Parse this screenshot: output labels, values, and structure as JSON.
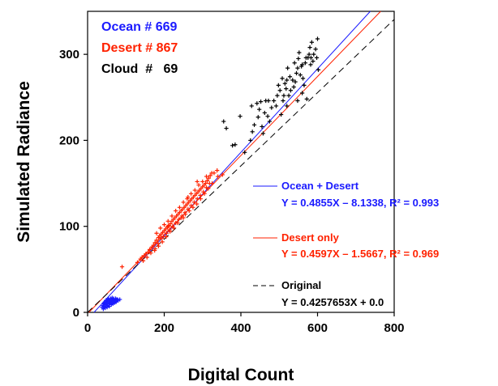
{
  "chart_data": {
    "type": "scatter",
    "title": "",
    "xlabel": "Digital Count",
    "ylabel": "Simulated Radiance",
    "xlim": [
      0,
      800
    ],
    "ylim": [
      0,
      350
    ],
    "x_ticks": [
      "0",
      "200",
      "400",
      "600",
      "800"
    ],
    "y_ticks": [
      "0",
      "100",
      "200",
      "300"
    ],
    "grid": false,
    "colors": {
      "ocean": "#1a1aff",
      "desert": "#ff2200",
      "cloud": "#000000",
      "original": "#000000"
    },
    "counts": [
      {
        "label": "Ocean # 669",
        "color": "#1a1aff"
      },
      {
        "label": "Desert # 867",
        "color": "#ff2200"
      },
      {
        "label": "Cloud  #   69",
        "color": "#000000"
      }
    ],
    "series": [
      {
        "name": "Ocean",
        "marker": "+",
        "color": "#1a1aff",
        "points": [
          [
            38,
            6
          ],
          [
            40,
            8
          ],
          [
            42,
            10
          ],
          [
            44,
            7
          ],
          [
            45,
            12
          ],
          [
            47,
            9
          ],
          [
            48,
            14
          ],
          [
            50,
            11
          ],
          [
            52,
            13
          ],
          [
            53,
            8
          ],
          [
            55,
            15
          ],
          [
            56,
            10
          ],
          [
            58,
            12
          ],
          [
            60,
            16
          ],
          [
            61,
            11
          ],
          [
            63,
            14
          ],
          [
            65,
            13
          ],
          [
            67,
            15
          ],
          [
            69,
            12
          ],
          [
            71,
            14
          ],
          [
            73,
            16
          ],
          [
            75,
            13
          ],
          [
            78,
            15
          ],
          [
            46,
            5
          ],
          [
            51,
            6
          ],
          [
            57,
            7
          ],
          [
            62,
            9
          ],
          [
            66,
            10
          ],
          [
            70,
            11
          ],
          [
            74,
            12
          ],
          [
            80,
            14
          ],
          [
            43,
            11
          ],
          [
            49,
            12
          ],
          [
            54,
            16
          ],
          [
            59,
            14
          ],
          [
            64,
            17
          ],
          [
            68,
            16
          ],
          [
            72,
            13
          ],
          [
            76,
            15
          ],
          [
            41,
            4
          ],
          [
            84,
            15
          ]
        ]
      },
      {
        "name": "Desert",
        "marker": "+",
        "color": "#ff2200",
        "points": [
          [
            90,
            53
          ],
          [
            130,
            58
          ],
          [
            138,
            62
          ],
          [
            142,
            64
          ],
          [
            148,
            66
          ],
          [
            152,
            68
          ],
          [
            158,
            70
          ],
          [
            162,
            73
          ],
          [
            168,
            76
          ],
          [
            172,
            78
          ],
          [
            176,
            81
          ],
          [
            180,
            84
          ],
          [
            185,
            87
          ],
          [
            188,
            89
          ],
          [
            192,
            91
          ],
          [
            196,
            93
          ],
          [
            200,
            95
          ],
          [
            204,
            97
          ],
          [
            208,
            99
          ],
          [
            212,
            101
          ],
          [
            216,
            103
          ],
          [
            220,
            106
          ],
          [
            224,
            108
          ],
          [
            228,
            110
          ],
          [
            232,
            112
          ],
          [
            236,
            114
          ],
          [
            240,
            116
          ],
          [
            244,
            118
          ],
          [
            248,
            120
          ],
          [
            252,
            122
          ],
          [
            256,
            124
          ],
          [
            260,
            126
          ],
          [
            264,
            128
          ],
          [
            268,
            130
          ],
          [
            272,
            132
          ],
          [
            276,
            134
          ],
          [
            280,
            136
          ],
          [
            284,
            138
          ],
          [
            288,
            140
          ],
          [
            292,
            142
          ],
          [
            296,
            144
          ],
          [
            300,
            146
          ],
          [
            304,
            148
          ],
          [
            308,
            150
          ],
          [
            312,
            153
          ],
          [
            316,
            156
          ],
          [
            320,
            159
          ],
          [
            324,
            162
          ],
          [
            176,
            74
          ],
          [
            184,
            80
          ],
          [
            192,
            86
          ],
          [
            198,
            88
          ],
          [
            206,
            92
          ],
          [
            214,
            96
          ],
          [
            222,
            100
          ],
          [
            230,
            104
          ],
          [
            238,
            108
          ],
          [
            246,
            112
          ],
          [
            254,
            116
          ],
          [
            262,
            120
          ],
          [
            270,
            124
          ],
          [
            278,
            128
          ],
          [
            286,
            132
          ],
          [
            294,
            136
          ],
          [
            302,
            140
          ],
          [
            310,
            145
          ],
          [
            318,
            150
          ],
          [
            190,
            98
          ],
          [
            200,
            102
          ],
          [
            210,
            106
          ],
          [
            220,
            112
          ],
          [
            230,
            118
          ],
          [
            240,
            122
          ],
          [
            250,
            128
          ],
          [
            260,
            132
          ],
          [
            270,
            138
          ],
          [
            280,
            142
          ],
          [
            290,
            148
          ],
          [
            300,
            152
          ],
          [
            310,
            158
          ],
          [
            155,
            64
          ],
          [
            165,
            69
          ],
          [
            175,
            72
          ],
          [
            185,
            77
          ],
          [
            195,
            82
          ],
          [
            205,
            88
          ],
          [
            215,
            94
          ],
          [
            225,
            98
          ],
          [
            235,
            104
          ],
          [
            245,
            110
          ],
          [
            255,
            114
          ],
          [
            265,
            118
          ],
          [
            275,
            122
          ],
          [
            285,
            126
          ],
          [
            295,
            132
          ],
          [
            305,
            138
          ],
          [
            315,
            144
          ],
          [
            325,
            150
          ],
          [
            330,
            162
          ],
          [
            338,
            165
          ],
          [
            340,
            158
          ],
          [
            352,
            160
          ],
          [
            145,
            60
          ],
          [
            180,
            92
          ],
          [
            210,
            100
          ],
          [
            250,
            110
          ],
          [
            262,
            134
          ],
          [
            286,
            152
          ]
        ]
      },
      {
        "name": "Cloud",
        "marker": "+",
        "color": "#000000",
        "points": [
          [
            355,
            222
          ],
          [
            362,
            214
          ],
          [
            378,
            194
          ],
          [
            385,
            195
          ],
          [
            398,
            228
          ],
          [
            410,
            186
          ],
          [
            425,
            200
          ],
          [
            428,
            240
          ],
          [
            435,
            218
          ],
          [
            442,
            243
          ],
          [
            448,
            236
          ],
          [
            452,
            245
          ],
          [
            455,
            216
          ],
          [
            458,
            208
          ],
          [
            462,
            232
          ],
          [
            465,
            246
          ],
          [
            470,
            228
          ],
          [
            475,
            222
          ],
          [
            480,
            238
          ],
          [
            486,
            246
          ],
          [
            492,
            240
          ],
          [
            498,
            264
          ],
          [
            502,
            258
          ],
          [
            505,
            230
          ],
          [
            508,
            272
          ],
          [
            510,
            246
          ],
          [
            512,
            252
          ],
          [
            515,
            266
          ],
          [
            518,
            260
          ],
          [
            520,
            240
          ],
          [
            522,
            284
          ],
          [
            525,
            252
          ],
          [
            528,
            274
          ],
          [
            530,
            258
          ],
          [
            535,
            270
          ],
          [
            538,
            262
          ],
          [
            540,
            290
          ],
          [
            542,
            268
          ],
          [
            545,
            278
          ],
          [
            548,
            284
          ],
          [
            550,
            295
          ],
          [
            552,
            302
          ],
          [
            555,
            276
          ],
          [
            558,
            286
          ],
          [
            560,
            288
          ],
          [
            562,
            272
          ],
          [
            565,
            264
          ],
          [
            568,
            290
          ],
          [
            570,
            296
          ],
          [
            572,
            248
          ],
          [
            575,
            296
          ],
          [
            578,
            300
          ],
          [
            580,
            308
          ],
          [
            582,
            288
          ],
          [
            585,
            314
          ],
          [
            588,
            292
          ],
          [
            590,
            300
          ],
          [
            595,
            306
          ],
          [
            598,
            296
          ],
          [
            602,
            282
          ],
          [
            560,
            255
          ],
          [
            520,
            270
          ],
          [
            495,
            252
          ],
          [
            472,
            246
          ],
          [
            445,
            227
          ],
          [
            430,
            210
          ],
          [
            548,
            246
          ],
          [
            583,
            296
          ],
          [
            600,
            318
          ]
        ]
      }
    ],
    "lines": [
      {
        "name": "Ocean + Desert",
        "equation": "Y = 0.4855X – 8.1338,  R² = 0.993",
        "slope": 0.4855,
        "intercept": -8.1338,
        "color": "#1a1aff",
        "dash": "solid"
      },
      {
        "name": "Desert only",
        "equation": "Y = 0.4597X – 1.5667,  R² = 0.969",
        "slope": 0.4597,
        "intercept": -1.5667,
        "color": "#ff2200",
        "dash": "solid"
      },
      {
        "name": "Original",
        "equation": "Y = 0.4257653X + 0.0",
        "slope": 0.4257653,
        "intercept": 0.0,
        "color": "#000000",
        "dash": "dashed"
      }
    ]
  }
}
